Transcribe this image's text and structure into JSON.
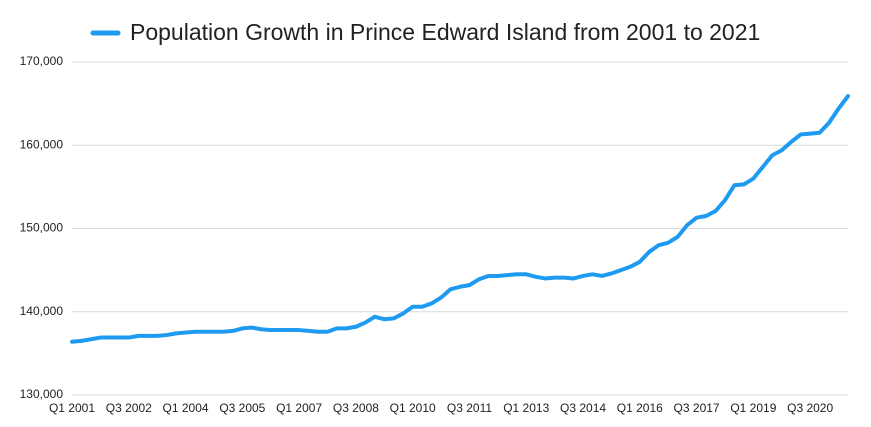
{
  "chart_data": {
    "type": "line",
    "categories": [
      "Q1 2001",
      null,
      null,
      null,
      null,
      null,
      "Q3 2002",
      null,
      null,
      null,
      null,
      null,
      "Q1 2004",
      null,
      null,
      null,
      null,
      null,
      "Q3 2005",
      null,
      null,
      null,
      null,
      null,
      "Q1 2007",
      null,
      null,
      null,
      null,
      null,
      "Q3 2008",
      null,
      null,
      null,
      null,
      null,
      "Q1 2010",
      null,
      null,
      null,
      null,
      null,
      "Q3 2011",
      null,
      null,
      null,
      null,
      null,
      "Q1 2013",
      null,
      null,
      null,
      null,
      null,
      "Q3 2014",
      null,
      null,
      null,
      null,
      null,
      "Q1 2016",
      null,
      null,
      null,
      null,
      null,
      "Q3 2017",
      null,
      null,
      null,
      null,
      null,
      "Q1 2019",
      null,
      null,
      null,
      null,
      null,
      "Q3 2020",
      null,
      null,
      null,
      null
    ],
    "series": [
      {
        "name": "Population Growth in Prince Edward Island from 2001 to 2021",
        "color": "#1e9bf0",
        "values": [
          136400,
          136500,
          136700,
          136900,
          136900,
          136900,
          136900,
          137100,
          137100,
          137100,
          137200,
          137400,
          137500,
          137600,
          137600,
          137600,
          137600,
          137700,
          138000,
          138100,
          137900,
          137800,
          137800,
          137800,
          137800,
          137700,
          137600,
          137600,
          138000,
          138000,
          138200,
          138700,
          139400,
          139100,
          139200,
          139800,
          140600,
          140600,
          141000,
          141700,
          142700,
          143000,
          143200,
          143900,
          144300,
          144300,
          144400,
          144500,
          144500,
          144200,
          144000,
          144100,
          144100,
          144000,
          144300,
          144500,
          144300,
          144600,
          145000,
          145400,
          146000,
          147200,
          148000,
          148300,
          149000,
          150400,
          151300,
          151500,
          152100,
          153400,
          155200,
          155300,
          156000,
          157400,
          158800,
          159400,
          160400,
          161300,
          161400,
          161500,
          162700,
          164400,
          165900
        ]
      }
    ],
    "ylim": [
      130000,
      170000
    ],
    "yticks": [
      {
        "value": 130000,
        "label": "130,000"
      },
      {
        "value": 140000,
        "label": "140,000"
      },
      {
        "value": 150000,
        "label": "150,000"
      },
      {
        "value": 160000,
        "label": "160,000"
      },
      {
        "value": 170000,
        "label": "170,000"
      }
    ],
    "grid": true
  }
}
